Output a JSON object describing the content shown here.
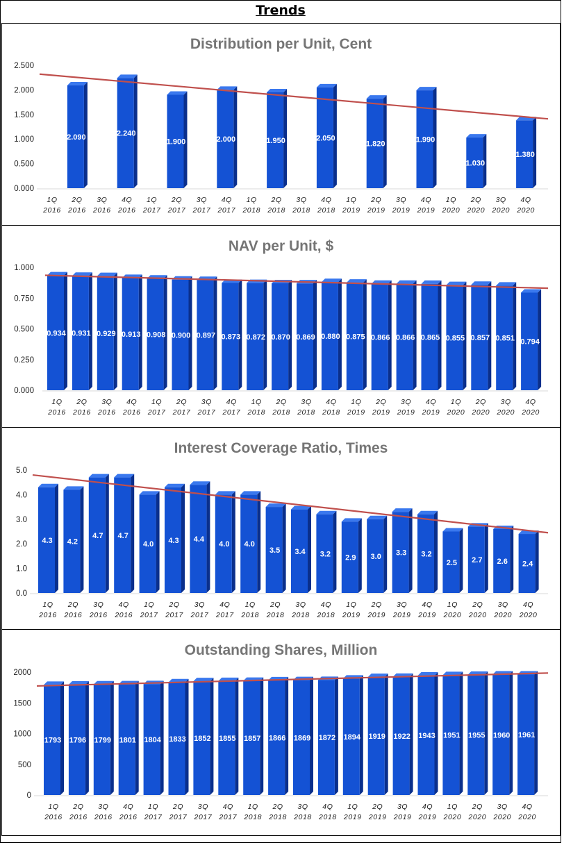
{
  "page_title": "Trends",
  "chart_data": [
    {
      "type": "bar",
      "title": "Distribution per Unit, Cent",
      "categories": [
        [
          "1Q",
          "2016"
        ],
        [
          "2Q",
          "2016"
        ],
        [
          "3Q",
          "2016"
        ],
        [
          "4Q",
          "2016"
        ],
        [
          "1Q",
          "2017"
        ],
        [
          "2Q",
          "2017"
        ],
        [
          "3Q",
          "2017"
        ],
        [
          "4Q",
          "2017"
        ],
        [
          "1Q",
          "2018"
        ],
        [
          "2Q",
          "2018"
        ],
        [
          "3Q",
          "2018"
        ],
        [
          "4Q",
          "2018"
        ],
        [
          "1Q",
          "2019"
        ],
        [
          "2Q",
          "2019"
        ],
        [
          "3Q",
          "2019"
        ],
        [
          "4Q",
          "2019"
        ],
        [
          "1Q",
          "2020"
        ],
        [
          "2Q",
          "2020"
        ],
        [
          "3Q",
          "2020"
        ],
        [
          "4Q",
          "2020"
        ]
      ],
      "values": [
        null,
        2.09,
        null,
        2.24,
        null,
        1.9,
        null,
        2.0,
        null,
        1.95,
        null,
        2.05,
        null,
        1.82,
        null,
        1.99,
        null,
        1.03,
        null,
        1.38
      ],
      "labels": [
        null,
        "2.090",
        null,
        "2.240",
        null,
        "1.900",
        null,
        "2.000",
        null,
        "1.950",
        null,
        "2.050",
        null,
        "1.820",
        null,
        "1.990",
        null,
        "1.030",
        null,
        "1.380"
      ],
      "ylim": [
        0,
        2.5
      ],
      "yticks": [
        "0.000",
        "0.500",
        "1.000",
        "1.500",
        "2.000",
        "2.500"
      ],
      "trendline": {
        "start": 2.32,
        "end": 1.41
      },
      "colors": {
        "bar": "#1452d4",
        "bar_side": "#0a2f8c",
        "bar_top": "#3a78ee",
        "trend": "#c0504d"
      }
    },
    {
      "type": "bar",
      "title": "NAV per Unit, $",
      "categories": [
        [
          "1Q",
          "2016"
        ],
        [
          "2Q",
          "2016"
        ],
        [
          "3Q",
          "2016"
        ],
        [
          "4Q",
          "2016"
        ],
        [
          "1Q",
          "2017"
        ],
        [
          "2Q",
          "2017"
        ],
        [
          "3Q",
          "2017"
        ],
        [
          "4Q",
          "2017"
        ],
        [
          "1Q",
          "2018"
        ],
        [
          "2Q",
          "2018"
        ],
        [
          "3Q",
          "2018"
        ],
        [
          "4Q",
          "2018"
        ],
        [
          "1Q",
          "2019"
        ],
        [
          "2Q",
          "2019"
        ],
        [
          "3Q",
          "2019"
        ],
        [
          "4Q",
          "2019"
        ],
        [
          "1Q",
          "2020"
        ],
        [
          "2Q",
          "2020"
        ],
        [
          "3Q",
          "2020"
        ],
        [
          "4Q",
          "2020"
        ]
      ],
      "values": [
        0.934,
        0.931,
        0.929,
        0.913,
        0.908,
        0.9,
        0.897,
        0.873,
        0.872,
        0.87,
        0.869,
        0.88,
        0.875,
        0.866,
        0.866,
        0.865,
        0.855,
        0.857,
        0.851,
        0.794
      ],
      "labels": [
        "0.934",
        "0.931",
        "0.929",
        "0.913",
        "0.908",
        "0.900",
        "0.897",
        "0.873",
        "0.872",
        "0.870",
        "0.869",
        "0.880",
        "0.875",
        "0.866",
        "0.866",
        "0.865",
        "0.855",
        "0.857",
        "0.851",
        "0.794"
      ],
      "ylim": [
        0,
        1.0
      ],
      "yticks": [
        "0.000",
        "0.250",
        "0.500",
        "0.750",
        "1.000"
      ],
      "trendline": {
        "start": 0.935,
        "end": 0.83
      },
      "colors": {
        "bar": "#1452d4",
        "bar_side": "#0a2f8c",
        "bar_top": "#3a78ee",
        "trend": "#c0504d"
      }
    },
    {
      "type": "bar",
      "title": "Interest Coverage Ratio, Times",
      "categories": [
        [
          "1Q",
          "2016"
        ],
        [
          "2Q",
          "2016"
        ],
        [
          "3Q",
          "2016"
        ],
        [
          "4Q",
          "2016"
        ],
        [
          "1Q",
          "2017"
        ],
        [
          "2Q",
          "2017"
        ],
        [
          "3Q",
          "2017"
        ],
        [
          "4Q",
          "2017"
        ],
        [
          "1Q",
          "2018"
        ],
        [
          "2Q",
          "2018"
        ],
        [
          "3Q",
          "2018"
        ],
        [
          "4Q",
          "2018"
        ],
        [
          "1Q",
          "2019"
        ],
        [
          "2Q",
          "2019"
        ],
        [
          "3Q",
          "2019"
        ],
        [
          "4Q",
          "2019"
        ],
        [
          "1Q",
          "2020"
        ],
        [
          "2Q",
          "2020"
        ],
        [
          "3Q",
          "2020"
        ],
        [
          "4Q",
          "2020"
        ]
      ],
      "values": [
        4.3,
        4.2,
        4.7,
        4.7,
        4.0,
        4.3,
        4.4,
        4.0,
        4.0,
        3.5,
        3.4,
        3.2,
        2.9,
        3.0,
        3.3,
        3.2,
        2.5,
        2.7,
        2.6,
        2.4
      ],
      "labels": [
        "4.3",
        "4.2",
        "4.7",
        "4.7",
        "4.0",
        "4.3",
        "4.4",
        "4.0",
        "4.0",
        "3.5",
        "3.4",
        "3.2",
        "2.9",
        "3.0",
        "3.3",
        "3.2",
        "2.5",
        "2.7",
        "2.6",
        "2.4"
      ],
      "ylim": [
        0,
        5.0
      ],
      "yticks": [
        "0.0",
        "1.0",
        "2.0",
        "3.0",
        "4.0",
        "5.0"
      ],
      "trendline": {
        "start": 4.8,
        "end": 2.45
      },
      "colors": {
        "bar": "#1452d4",
        "bar_side": "#0a2f8c",
        "bar_top": "#3a78ee",
        "trend": "#c0504d"
      }
    },
    {
      "type": "bar",
      "title": "Outstanding Shares, Million",
      "categories": [
        [
          "1Q",
          "2016"
        ],
        [
          "2Q",
          "2016"
        ],
        [
          "3Q",
          "2016"
        ],
        [
          "4Q",
          "2016"
        ],
        [
          "1Q",
          "2017"
        ],
        [
          "2Q",
          "2017"
        ],
        [
          "3Q",
          "2017"
        ],
        [
          "4Q",
          "2017"
        ],
        [
          "1Q",
          "2018"
        ],
        [
          "2Q",
          "2018"
        ],
        [
          "3Q",
          "2018"
        ],
        [
          "4Q",
          "2018"
        ],
        [
          "1Q",
          "2019"
        ],
        [
          "2Q",
          "2019"
        ],
        [
          "3Q",
          "2019"
        ],
        [
          "4Q",
          "2019"
        ],
        [
          "1Q",
          "2020"
        ],
        [
          "2Q",
          "2020"
        ],
        [
          "3Q",
          "2020"
        ],
        [
          "4Q",
          "2020"
        ]
      ],
      "values": [
        1793,
        1796,
        1799,
        1801,
        1804,
        1833,
        1852,
        1855,
        1857,
        1866,
        1869,
        1872,
        1894,
        1919,
        1922,
        1943,
        1951,
        1955,
        1960,
        1961
      ],
      "labels": [
        "1793",
        "1796",
        "1799",
        "1801",
        "1804",
        "1833",
        "1852",
        "1855",
        "1857",
        "1866",
        "1869",
        "1872",
        "1894",
        "1919",
        "1922",
        "1943",
        "1951",
        "1955",
        "1960",
        "1961"
      ],
      "ylim": [
        0,
        2000
      ],
      "yticks": [
        "0",
        "500",
        "1000",
        "1500",
        "2000"
      ],
      "trendline": {
        "start": 1775,
        "end": 1985
      },
      "colors": {
        "bar": "#1452d4",
        "bar_side": "#0a2f8c",
        "bar_top": "#3a78ee",
        "trend": "#c0504d"
      }
    }
  ]
}
